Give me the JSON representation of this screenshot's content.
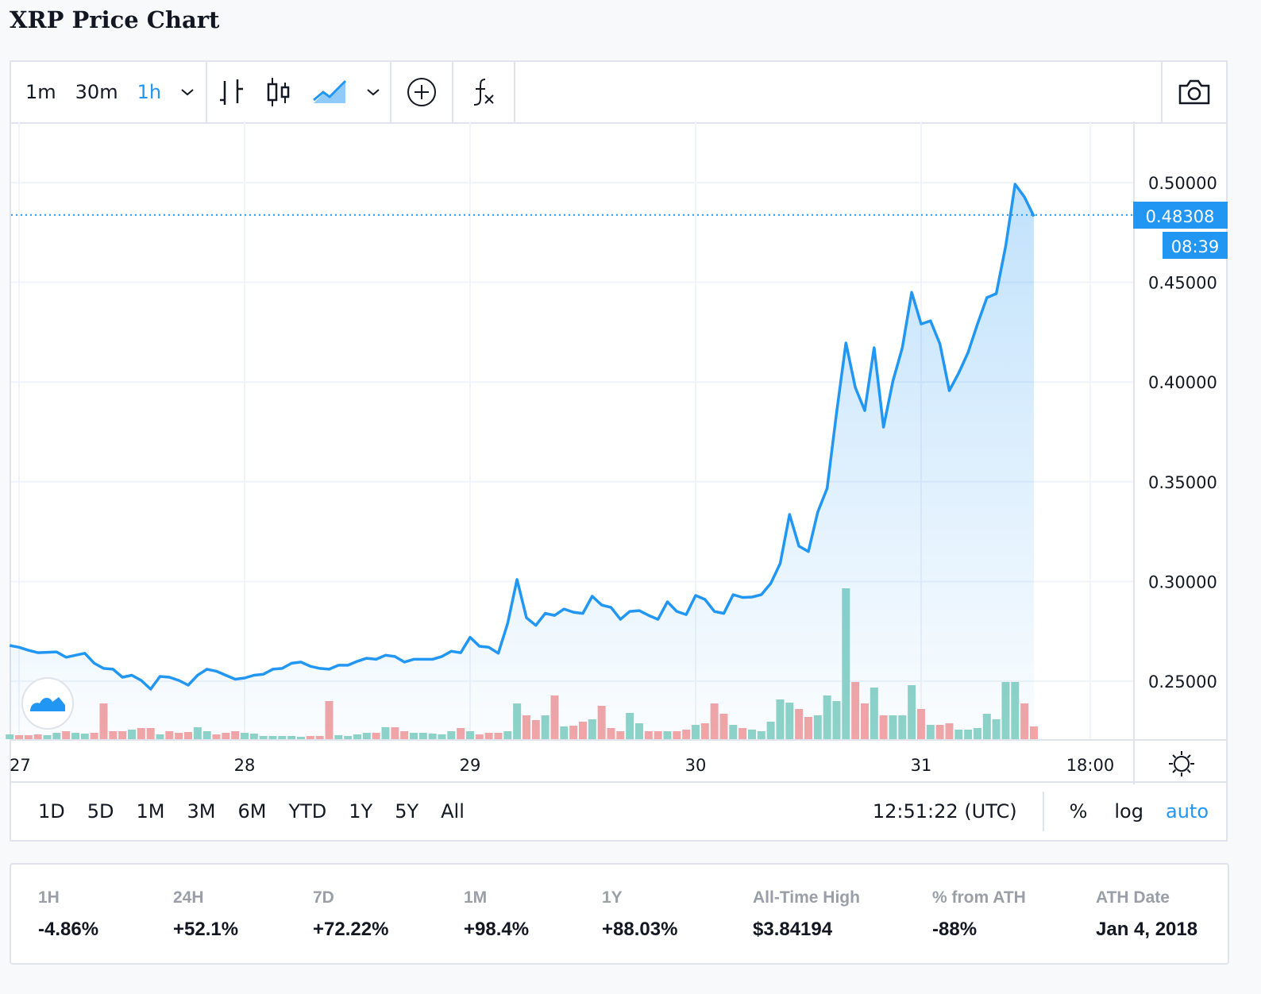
{
  "page_title": "XRP Price Chart",
  "toolbar": {
    "intervals": [
      "1m",
      "30m",
      "1h"
    ],
    "active_interval": "1h",
    "icons": [
      "bars-icon",
      "candles-icon",
      "area-icon",
      "plus-circle-icon",
      "function-icon",
      "camera-icon"
    ]
  },
  "bottom_bar": {
    "ranges": [
      "1D",
      "5D",
      "1M",
      "3M",
      "6M",
      "YTD",
      "1Y",
      "5Y",
      "All"
    ],
    "clock": "12:51:22 (UTC)",
    "scale_options": [
      "%",
      "log",
      "auto"
    ],
    "active_scale": "auto"
  },
  "stats": [
    {
      "label": "1H",
      "value": "-4.86%"
    },
    {
      "label": "24H",
      "value": "+52.1%"
    },
    {
      "label": "7D",
      "value": "+72.22%"
    },
    {
      "label": "1M",
      "value": "+98.4%"
    },
    {
      "label": "1Y",
      "value": "+88.03%"
    },
    {
      "label": "All-Time High",
      "value": "$3.84194"
    },
    {
      "label": "% from ATH",
      "value": "-88%"
    },
    {
      "label": "ATH Date",
      "value": "Jan 4, 2018"
    }
  ],
  "colors": {
    "line": "#2196f3",
    "up": "#8fd3c7",
    "down": "#f4a5a5",
    "accent": "#2196f3"
  },
  "chart_data": {
    "type": "area",
    "interval": "1h",
    "last_price_label": "0.48308",
    "countdown_label": "08:39",
    "x_ticks": [
      "27",
      "28",
      "29",
      "30",
      "31",
      "18:00"
    ],
    "y_ticks": [
      "0.25000",
      "0.30000",
      "0.35000",
      "0.40000",
      "0.45000",
      "0.50000"
    ],
    "ylim": [
      0.22,
      0.53
    ],
    "grid": true,
    "x": [
      "26 23:00",
      "27 00:00",
      "27 01:00",
      "27 02:00",
      "27 03:00",
      "27 04:00",
      "27 05:00",
      "27 06:00",
      "27 07:00",
      "27 08:00",
      "27 09:00",
      "27 10:00",
      "27 11:00",
      "27 12:00",
      "27 13:00",
      "27 14:00",
      "27 15:00",
      "27 16:00",
      "27 17:00",
      "27 18:00",
      "27 19:00",
      "27 20:00",
      "27 21:00",
      "27 22:00",
      "27 23:00",
      "28 00:00",
      "28 01:00",
      "28 02:00",
      "28 03:00",
      "28 04:00",
      "28 05:00",
      "28 06:00",
      "28 07:00",
      "28 08:00",
      "28 09:00",
      "28 10:00",
      "28 11:00",
      "28 12:00",
      "28 13:00",
      "28 14:00",
      "28 15:00",
      "28 16:00",
      "28 17:00",
      "28 18:00",
      "28 19:00",
      "28 20:00",
      "28 21:00",
      "28 22:00",
      "28 23:00",
      "29 00:00",
      "29 01:00",
      "29 02:00",
      "29 03:00",
      "29 04:00",
      "29 05:00",
      "29 06:00",
      "29 07:00",
      "29 08:00",
      "29 09:00",
      "29 10:00",
      "29 11:00",
      "29 12:00",
      "29 13:00",
      "29 14:00",
      "29 15:00",
      "29 16:00",
      "29 17:00",
      "29 18:00",
      "29 19:00",
      "29 20:00",
      "29 21:00",
      "29 22:00",
      "29 23:00",
      "30 00:00",
      "30 01:00",
      "30 02:00",
      "30 03:00",
      "30 04:00",
      "30 05:00",
      "30 06:00",
      "30 07:00",
      "30 08:00",
      "30 09:00",
      "30 10:00",
      "30 11:00",
      "30 12:00",
      "30 13:00",
      "30 14:00",
      "30 15:00",
      "30 16:00",
      "30 17:00",
      "30 18:00",
      "30 19:00",
      "30 20:00",
      "30 21:00",
      "30 22:00",
      "30 23:00",
      "31 00:00",
      "31 01:00",
      "31 02:00",
      "31 03:00",
      "31 04:00",
      "31 05:00",
      "31 06:00",
      "31 07:00",
      "31 08:00",
      "31 09:00",
      "31 10:00",
      "31 11:00",
      "31 12:00"
    ],
    "price": [
      0.2679,
      0.267,
      0.2655,
      0.2643,
      0.2645,
      0.2647,
      0.262,
      0.263,
      0.264,
      0.259,
      0.2564,
      0.256,
      0.252,
      0.253,
      0.2504,
      0.246,
      0.2524,
      0.252,
      0.2504,
      0.248,
      0.253,
      0.256,
      0.255,
      0.253,
      0.251,
      0.2516,
      0.253,
      0.2535,
      0.256,
      0.2564,
      0.259,
      0.2596,
      0.2575,
      0.2564,
      0.256,
      0.258,
      0.258,
      0.26,
      0.2615,
      0.261,
      0.263,
      0.2624,
      0.2596,
      0.261,
      0.261,
      0.261,
      0.2624,
      0.265,
      0.2643,
      0.272,
      0.2675,
      0.267,
      0.264,
      0.279,
      0.301,
      0.2818,
      0.278,
      0.284,
      0.283,
      0.2862,
      0.2846,
      0.284,
      0.2926,
      0.2882,
      0.287,
      0.281,
      0.285,
      0.2854,
      0.283,
      0.281,
      0.2898,
      0.285,
      0.2834,
      0.293,
      0.291,
      0.285,
      0.284,
      0.2934,
      0.292,
      0.2922,
      0.2934,
      0.299,
      0.309,
      0.3336,
      0.3177,
      0.315,
      0.3348,
      0.3467,
      0.3846,
      0.4196,
      0.3973,
      0.3857,
      0.4172,
      0.3774,
      0.4005,
      0.4172,
      0.445,
      0.4291,
      0.4307,
      0.4192,
      0.3957,
      0.4045,
      0.4148,
      0.4291,
      0.4423,
      0.4443,
      0.4682,
      0.4992,
      0.4928,
      0.48308
    ],
    "volume_relative": [
      6,
      5,
      5,
      6,
      5,
      8,
      10,
      8,
      7,
      8,
      45,
      10,
      10,
      12,
      14,
      14,
      6,
      10,
      8,
      9,
      15,
      10,
      6,
      8,
      10,
      8,
      7,
      4,
      4,
      4,
      4,
      3,
      4,
      4,
      48,
      5,
      4,
      6,
      8,
      8,
      15,
      15,
      10,
      8,
      8,
      7,
      6,
      10,
      14,
      10,
      6,
      8,
      8,
      10,
      45,
      30,
      24,
      30,
      55,
      16,
      17,
      22,
      25,
      42,
      14,
      10,
      33,
      20,
      10,
      10,
      10,
      10,
      12,
      18,
      20,
      45,
      32,
      18,
      14,
      12,
      10,
      22,
      50,
      46,
      38,
      28,
      30,
      55,
      48,
      190,
      72,
      45,
      65,
      30,
      30,
      30,
      68,
      38,
      18,
      18,
      20,
      12,
      12,
      14,
      32,
      25,
      72,
      72,
      45,
      16
    ]
  }
}
